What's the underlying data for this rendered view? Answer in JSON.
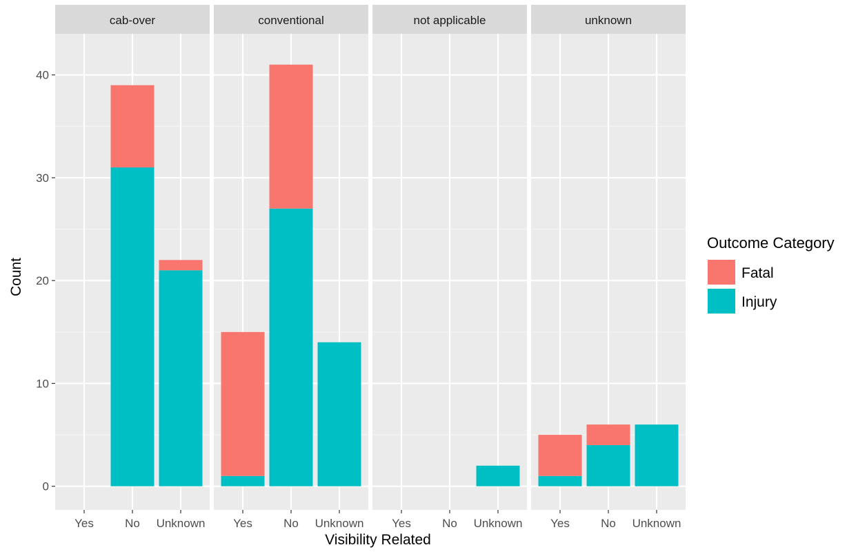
{
  "chart_data": {
    "type": "bar",
    "stacked": true,
    "faceted": true,
    "xlabel": "Visibility Related",
    "ylabel": "Count",
    "ylim": [
      -2.3,
      44
    ],
    "yticks": [
      0,
      10,
      20,
      30,
      40
    ],
    "categories": [
      "Yes",
      "No",
      "Unknown"
    ],
    "legend": {
      "title": "Outcome Category",
      "position": "right",
      "entries": [
        {
          "name": "Fatal",
          "color": "#F8766D"
        },
        {
          "name": "Injury",
          "color": "#00BFC4"
        }
      ]
    },
    "panels": [
      {
        "label": "cab-over",
        "series": [
          {
            "name": "Fatal",
            "values": [
              0,
              8,
              1
            ]
          },
          {
            "name": "Injury",
            "values": [
              0,
              31,
              21
            ]
          }
        ]
      },
      {
        "label": "conventional",
        "series": [
          {
            "name": "Fatal",
            "values": [
              14,
              14,
              0
            ]
          },
          {
            "name": "Injury",
            "values": [
              1,
              27,
              14
            ]
          }
        ]
      },
      {
        "label": "not applicable",
        "series": [
          {
            "name": "Fatal",
            "values": [
              0,
              0,
              0
            ]
          },
          {
            "name": "Injury",
            "values": [
              0,
              0,
              2
            ]
          }
        ]
      },
      {
        "label": "unknown",
        "series": [
          {
            "name": "Fatal",
            "values": [
              4,
              2,
              0
            ]
          },
          {
            "name": "Injury",
            "values": [
              1,
              4,
              6
            ]
          }
        ]
      }
    ],
    "grid": true
  }
}
